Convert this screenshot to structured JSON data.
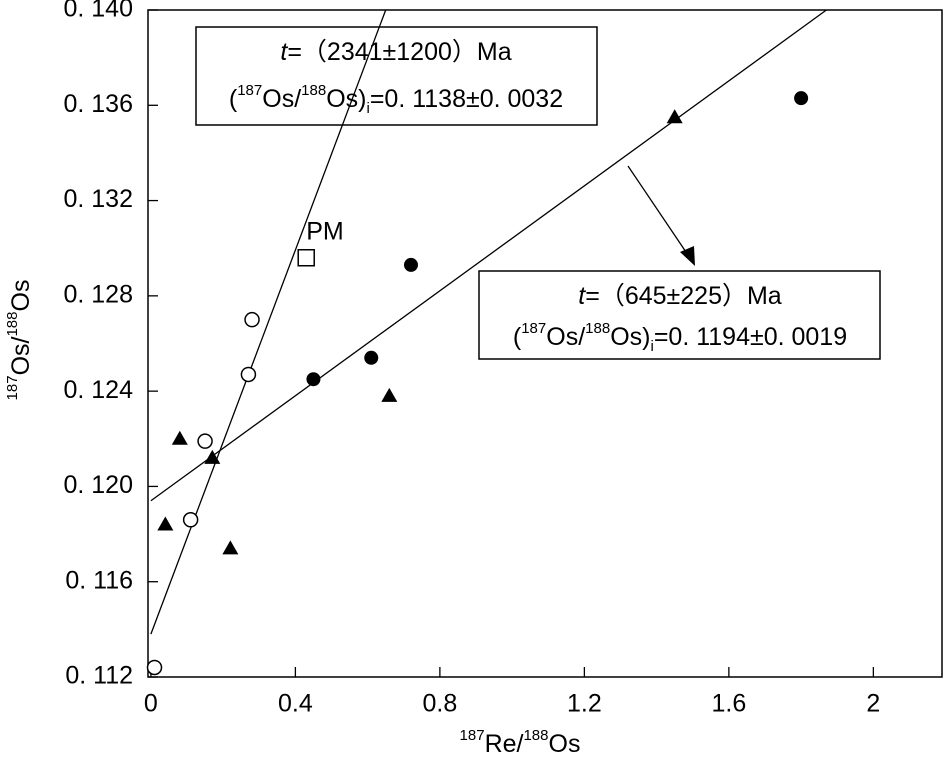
{
  "chart_data": {
    "type": "scatter",
    "xlabel": [
      "187",
      "Re/",
      "188",
      "Os"
    ],
    "ylabel": [
      "187",
      "Os/",
      "188",
      "Os"
    ],
    "xlim": [
      -0.008,
      2.19
    ],
    "ylim": [
      0.112,
      0.14
    ],
    "xticks": [
      0,
      0.4,
      0.8,
      1.2,
      1.6,
      2
    ],
    "yticks": [
      {
        "value": 0.112,
        "label": "0. 112"
      },
      {
        "value": 0.116,
        "label": "0. 116"
      },
      {
        "value": 0.12,
        "label": "0. 120"
      },
      {
        "value": 0.124,
        "label": "0. 124"
      },
      {
        "value": 0.128,
        "label": "0. 128"
      },
      {
        "value": 0.132,
        "label": "0. 132"
      },
      {
        "value": 0.136,
        "label": "0. 136"
      },
      {
        "value": 0.14,
        "label": "0. 140"
      }
    ],
    "series": [
      {
        "marker": "filled-circle",
        "color": "#000000",
        "x": [
          1.8,
          0.72,
          0.61,
          0.45
        ],
        "values": [
          0.1363,
          0.1293,
          0.1254,
          0.1245
        ]
      },
      {
        "marker": "triangle",
        "color": "#000000",
        "x": [
          1.45,
          0.66,
          0.08,
          0.17,
          0.04,
          0.22
        ],
        "values": [
          0.1355,
          0.1238,
          0.122,
          0.1212,
          0.1184,
          0.1174
        ]
      },
      {
        "marker": "open-circle",
        "color": "#000000",
        "x": [
          0.28,
          0.27,
          0.15,
          0.11,
          0.01
        ],
        "values": [
          0.127,
          0.1247,
          0.1219,
          0.1186,
          0.1124
        ]
      },
      {
        "marker": "square",
        "color": "#000000",
        "label": "PM",
        "x": [
          0.43
        ],
        "values": [
          0.1296
        ]
      }
    ],
    "lines": [
      {
        "x": [
          0,
          0.65
        ],
        "values": [
          0.1138,
          0.14
        ]
      },
      {
        "x": [
          0,
          1.87
        ],
        "values": [
          0.1194,
          0.14
        ]
      }
    ],
    "annotations": [
      {
        "age": [
          "t",
          "=（2341±1200）Ma"
        ],
        "ratio": [
          "(",
          "187",
          "Os/",
          "188",
          "Os)",
          "i",
          "=0. 1138±0. 0032"
        ]
      },
      {
        "age": [
          "t",
          "=（645±225）Ma"
        ],
        "ratio": [
          "(",
          "187",
          "Os/",
          "188",
          "Os)",
          "i",
          "=0. 1194±0. 0019"
        ]
      }
    ]
  }
}
